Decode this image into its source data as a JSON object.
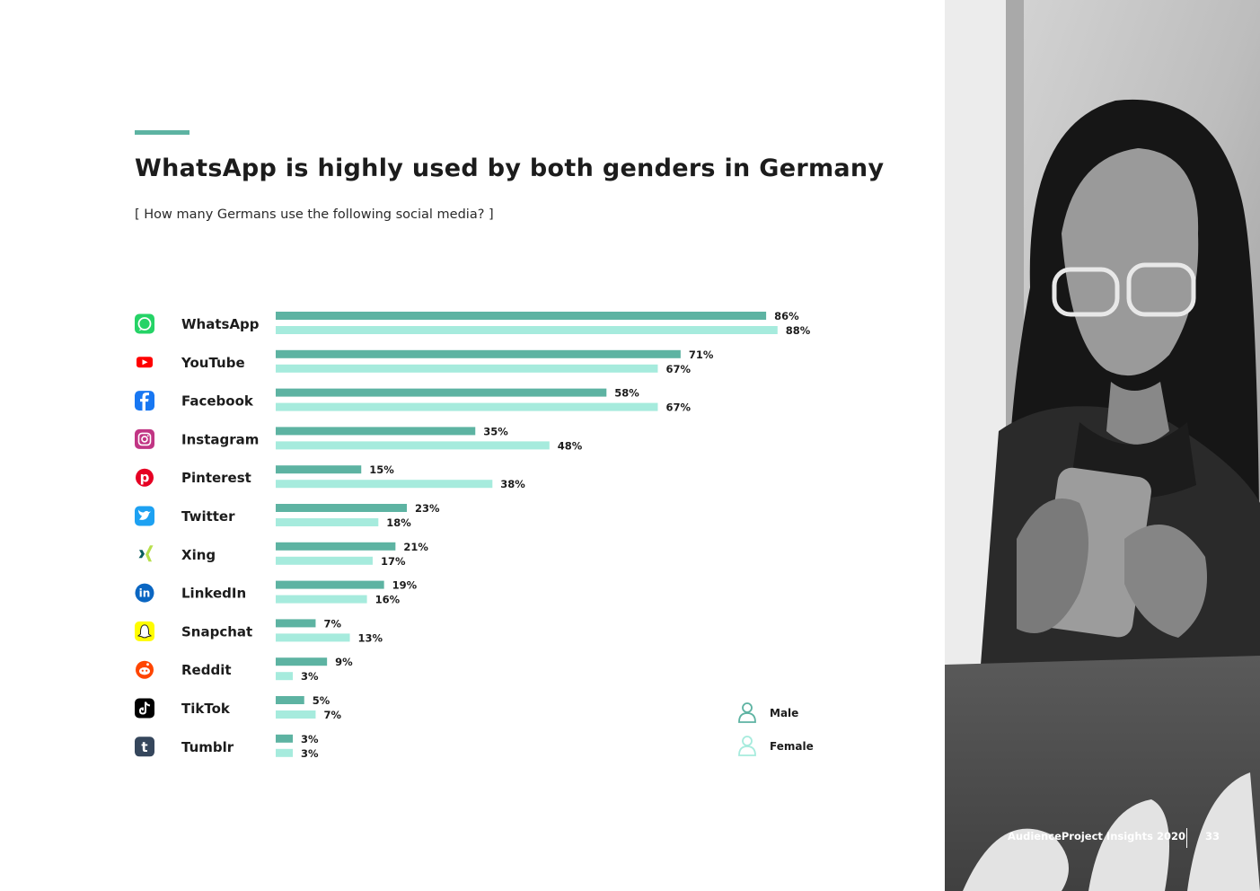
{
  "page": {
    "title": "WhatsApp is highly used by both genders in Germany",
    "subtitle": "[ How many Germans use the following social media? ]"
  },
  "colors": {
    "male": "#5db3a2",
    "female": "#a6ebdd",
    "accent": "#5db3a2"
  },
  "chart_data": {
    "type": "bar",
    "orientation": "horizontal",
    "title": "WhatsApp is highly used by both genders in Germany",
    "subtitle": "[ How many Germans use the following social media? ]",
    "categories": [
      "WhatsApp",
      "YouTube",
      "Facebook",
      "Instagram",
      "Pinterest",
      "Twitter",
      "Xing",
      "LinkedIn",
      "Snapchat",
      "Reddit",
      "TikTok",
      "Tumblr"
    ],
    "icons": [
      "whatsapp-icon",
      "youtube-icon",
      "facebook-icon",
      "instagram-icon",
      "pinterest-icon",
      "twitter-icon",
      "xing-icon",
      "linkedin-icon",
      "snapchat-icon",
      "reddit-icon",
      "tiktok-icon",
      "tumblr-icon"
    ],
    "series": [
      {
        "name": "Male",
        "color": "#5db3a2",
        "values": [
          86,
          71,
          58,
          35,
          15,
          23,
          21,
          19,
          7,
          9,
          5,
          3
        ]
      },
      {
        "name": "Female",
        "color": "#a6ebdd",
        "values": [
          88,
          67,
          67,
          48,
          38,
          18,
          17,
          16,
          13,
          3,
          7,
          3
        ]
      }
    ],
    "value_suffix": "%",
    "xlim": [
      0,
      100
    ],
    "grid": false,
    "legend": {
      "position": "bottom-right",
      "items": [
        "Male",
        "Female"
      ],
      "icons": [
        "male-person-icon",
        "female-person-icon"
      ]
    }
  },
  "footer": {
    "text": "AudienceProject Insights 2020",
    "page_number": "33"
  }
}
